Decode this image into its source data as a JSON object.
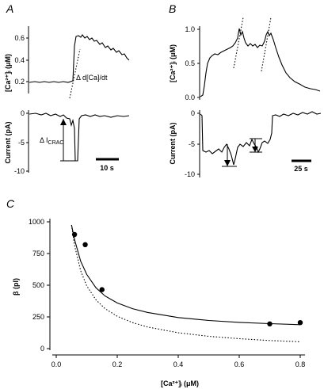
{
  "panels": {
    "a": "A",
    "b": "B",
    "c": "C"
  },
  "panel_a": {
    "ca_ylabel": "[Ca²⁺]ᵢ (μM)",
    "ca_ticks": [
      "0.2",
      "0.4",
      "0.6"
    ],
    "cur_ylabel": "Current (pA)",
    "cur_ticks": [
      "0",
      "-5",
      "-10"
    ],
    "annot_slope": "Δ d[Ca]/dt",
    "annot_icrac_main": "Δ I",
    "annot_icrac_sub": "CRAC",
    "scalebar": "10 s"
  },
  "panel_b": {
    "ca_ylabel": "[Ca²⁺]ᵢ (μM)",
    "ca_ticks": [
      "0.0",
      "0.5",
      "1.0"
    ],
    "cur_ylabel": "Current (pA)",
    "cur_ticks": [
      "0",
      "-5",
      "-10"
    ],
    "scalebar": "25 s"
  },
  "chart_data": {
    "type": "scatter",
    "title": "",
    "xlabel": "[Ca²⁺]ᵢ (μM)",
    "ylabel": "β (pl)",
    "xlim": [
      0.0,
      0.8
    ],
    "ylim": [
      0,
      1000
    ],
    "x_ticks": [
      "0.0",
      "0.2",
      "0.4",
      "0.6",
      "0.8"
    ],
    "y_ticks": [
      "0",
      "250",
      "500",
      "750",
      "1000"
    ],
    "series": [
      {
        "kind": "points",
        "x": [
          0.06,
          0.095,
          0.15,
          0.7,
          0.8
        ],
        "y": [
          900,
          820,
          465,
          195,
          205
        ]
      },
      {
        "kind": "solid-fit",
        "x": [
          0.05,
          0.06,
          0.08,
          0.1,
          0.13,
          0.16,
          0.2,
          0.25,
          0.3,
          0.4,
          0.5,
          0.6,
          0.7,
          0.8
        ],
        "y": [
          975,
          860,
          690,
          585,
          480,
          415,
          360,
          315,
          285,
          245,
          222,
          207,
          197,
          189
        ]
      },
      {
        "kind": "dotted-fit",
        "x": [
          0.05,
          0.06,
          0.08,
          0.1,
          0.13,
          0.16,
          0.2,
          0.25,
          0.3,
          0.4,
          0.5,
          0.6,
          0.7,
          0.8
        ],
        "y": [
          975,
          815,
          615,
          495,
          385,
          315,
          255,
          205,
          170,
          125,
          97,
          78,
          64,
          54
        ]
      }
    ]
  }
}
